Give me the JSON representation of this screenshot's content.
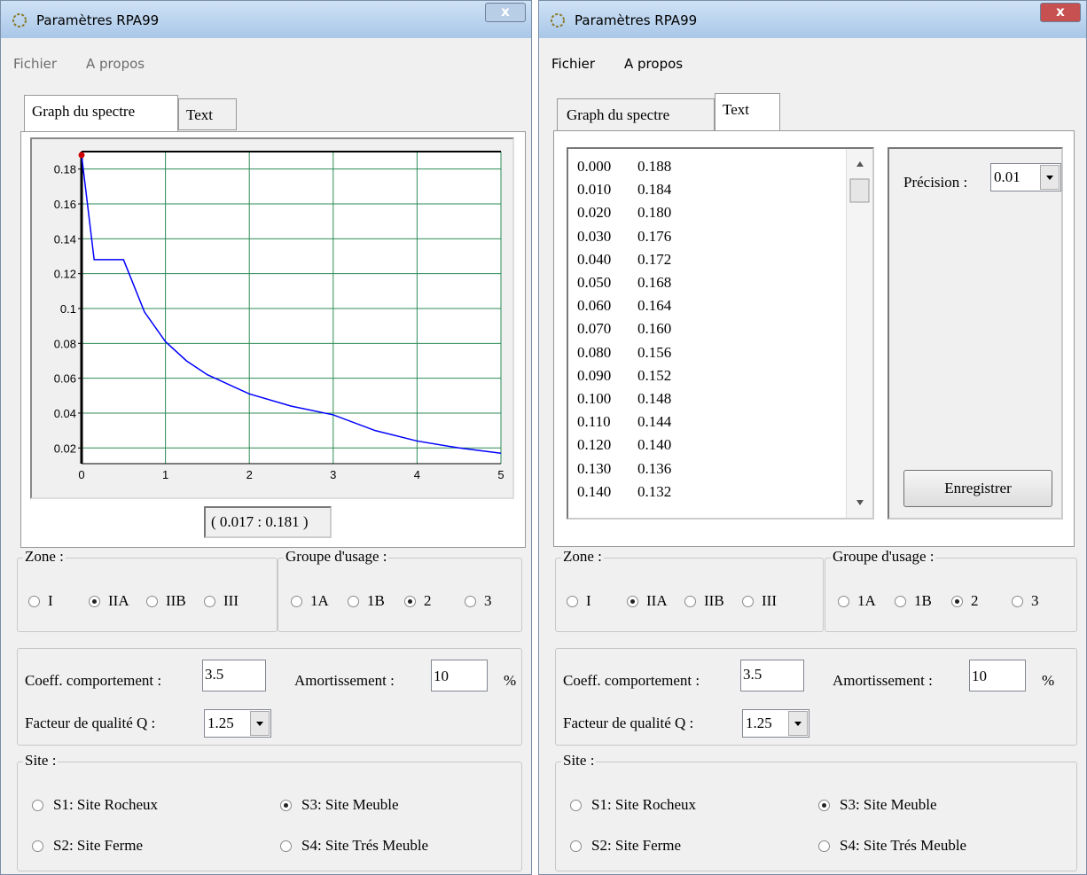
{
  "left_window": {
    "title": "Paramètres RPA99",
    "close": "x",
    "menu": [
      "Fichier",
      "A propos"
    ],
    "tabs": [
      "Graph du spectre",
      "Text"
    ],
    "graph": {
      "type": "line",
      "x": [
        0,
        0.15,
        0.5,
        0.75,
        1,
        1.25,
        1.5,
        2,
        2.5,
        3,
        3.5,
        4,
        4.5,
        5
      ],
      "values": [
        0.188,
        0.128,
        0.128,
        0.098,
        0.081,
        0.07,
        0.062,
        0.051,
        0.044,
        0.039,
        0.03,
        0.024,
        0.02,
        0.017
      ],
      "xlim": [
        0,
        5
      ],
      "ylim": [
        0.011,
        0.19
      ],
      "xticks": [
        0,
        1,
        2,
        3,
        4,
        5
      ],
      "yticks": [
        0.02,
        0.04,
        0.06,
        0.08,
        0.1,
        0.12,
        0.14,
        0.16,
        0.18
      ],
      "grid": true,
      "color": "#0000ff"
    },
    "readout": "( 0.017 : 0.181 )",
    "zone": {
      "label": "Zone :",
      "options": [
        "I",
        "IIA",
        "IIB",
        "III"
      ],
      "selected": 1
    },
    "groupe": {
      "label": "Groupe d'usage :",
      "options": [
        "1A",
        "1B",
        "2",
        "3"
      ],
      "selected": 2
    },
    "coeff": {
      "label": "Coeff. comportement :",
      "value": "3.5"
    },
    "amort": {
      "label": "Amortissement :",
      "value": "10",
      "unit": "%"
    },
    "facteur": {
      "label": "Facteur de qualité Q :",
      "value": "1.25"
    },
    "site": {
      "label": "Site :",
      "options": [
        "S1: Site Rocheux",
        "S2: Site Ferme",
        "S3: Site Meuble",
        "S4: Site Trés Meuble"
      ],
      "selected": 2
    }
  },
  "right_window": {
    "title": "Paramètres RPA99",
    "close": "x",
    "menu": [
      "Fichier",
      "A propos"
    ],
    "tabs": [
      "Graph du spectre",
      "Text"
    ],
    "text_list": [
      [
        "0.000",
        "0.188"
      ],
      [
        "0.010",
        "0.184"
      ],
      [
        "0.020",
        "0.180"
      ],
      [
        "0.030",
        "0.176"
      ],
      [
        "0.040",
        "0.172"
      ],
      [
        "0.050",
        "0.168"
      ],
      [
        "0.060",
        "0.164"
      ],
      [
        "0.070",
        "0.160"
      ],
      [
        "0.080",
        "0.156"
      ],
      [
        "0.090",
        "0.152"
      ],
      [
        "0.100",
        "0.148"
      ],
      [
        "0.110",
        "0.144"
      ],
      [
        "0.120",
        "0.140"
      ],
      [
        "0.130",
        "0.136"
      ],
      [
        "0.140",
        "0.132"
      ]
    ],
    "precision": {
      "label": "Précision :",
      "value": "0.01"
    },
    "save": "Enregistrer",
    "zone": {
      "label": "Zone :",
      "options": [
        "I",
        "IIA",
        "IIB",
        "III"
      ],
      "selected": 1
    },
    "groupe": {
      "label": "Groupe d'usage :",
      "options": [
        "1A",
        "1B",
        "2",
        "3"
      ],
      "selected": 2
    },
    "coeff": {
      "label": "Coeff. comportement :",
      "value": "3.5"
    },
    "amort": {
      "label": "Amortissement :",
      "value": "10",
      "unit": "%"
    },
    "facteur": {
      "label": "Facteur de qualité Q :",
      "value": "1.25"
    },
    "site": {
      "label": "Site :",
      "options": [
        "S1: Site Rocheux",
        "S2: Site Ferme",
        "S3: Site Meuble",
        "S4: Site Trés Meuble"
      ],
      "selected": 2
    }
  }
}
